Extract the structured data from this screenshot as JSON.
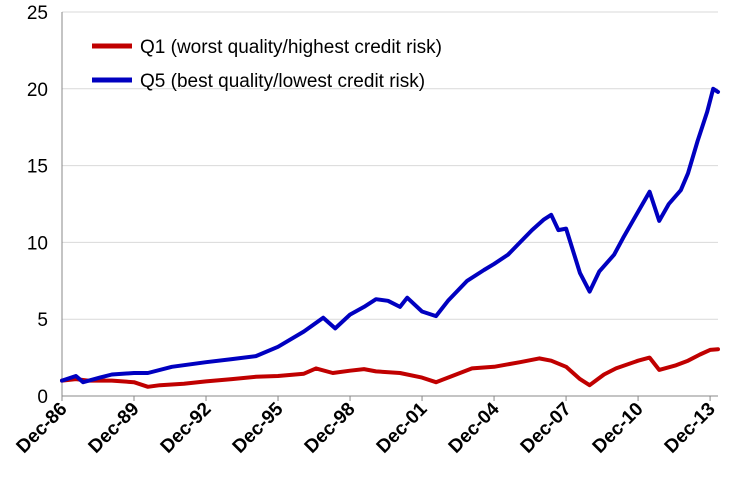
{
  "chart_data": {
    "type": "line",
    "title": "",
    "xlabel": "",
    "ylabel": "",
    "ylim": [
      0,
      25
    ],
    "yticks": [
      "0",
      "5",
      "10",
      "15",
      "20",
      "25"
    ],
    "xticks": [
      "Dec-86",
      "Dec-89",
      "Dec-92",
      "Dec-95",
      "Dec-98",
      "Dec-01",
      "Dec-04",
      "Dec-07",
      "Dec-10",
      "Dec-13"
    ],
    "x_range": [
      1986.92,
      2014.25
    ],
    "grid": "horizontal",
    "legend_position": "top-left",
    "series": [
      {
        "name": "Q1 (worst quality/highest credit risk)",
        "color": "#c00000",
        "points": [
          [
            1986.92,
            1.0
          ],
          [
            1987.5,
            1.1
          ],
          [
            1988.0,
            1.0
          ],
          [
            1989.0,
            1.0
          ],
          [
            1989.92,
            0.9
          ],
          [
            1990.5,
            0.6
          ],
          [
            1991.0,
            0.7
          ],
          [
            1992.0,
            0.8
          ],
          [
            1992.92,
            0.95
          ],
          [
            1994.0,
            1.1
          ],
          [
            1995.0,
            1.25
          ],
          [
            1995.92,
            1.3
          ],
          [
            1997.0,
            1.45
          ],
          [
            1997.5,
            1.8
          ],
          [
            1998.2,
            1.5
          ],
          [
            1998.92,
            1.65
          ],
          [
            1999.5,
            1.75
          ],
          [
            2000.0,
            1.6
          ],
          [
            2001.0,
            1.5
          ],
          [
            2001.92,
            1.2
          ],
          [
            2002.5,
            0.9
          ],
          [
            2003.0,
            1.2
          ],
          [
            2003.5,
            1.5
          ],
          [
            2004.0,
            1.8
          ],
          [
            2004.92,
            1.9
          ],
          [
            2006.0,
            2.2
          ],
          [
            2006.8,
            2.45
          ],
          [
            2007.3,
            2.3
          ],
          [
            2007.92,
            1.9
          ],
          [
            2008.5,
            1.1
          ],
          [
            2008.9,
            0.7
          ],
          [
            2009.5,
            1.4
          ],
          [
            2010.0,
            1.8
          ],
          [
            2010.92,
            2.3
          ],
          [
            2011.4,
            2.5
          ],
          [
            2011.8,
            1.7
          ],
          [
            2012.5,
            2.0
          ],
          [
            2013.0,
            2.3
          ],
          [
            2013.5,
            2.7
          ],
          [
            2013.92,
            3.0
          ],
          [
            2014.25,
            3.05
          ]
        ]
      },
      {
        "name": "Q5 (best quality/lowest credit risk)",
        "color": "#0000c0",
        "points": [
          [
            1986.92,
            1.0
          ],
          [
            1987.5,
            1.3
          ],
          [
            1987.8,
            0.9
          ],
          [
            1988.5,
            1.2
          ],
          [
            1989.0,
            1.4
          ],
          [
            1989.92,
            1.5
          ],
          [
            1990.5,
            1.5
          ],
          [
            1991.5,
            1.9
          ],
          [
            1992.92,
            2.2
          ],
          [
            1994.0,
            2.4
          ],
          [
            1995.0,
            2.6
          ],
          [
            1995.92,
            3.2
          ],
          [
            1997.0,
            4.2
          ],
          [
            1997.8,
            5.1
          ],
          [
            1998.3,
            4.4
          ],
          [
            1998.92,
            5.3
          ],
          [
            1999.5,
            5.8
          ],
          [
            2000.0,
            6.3
          ],
          [
            2000.5,
            6.2
          ],
          [
            2001.0,
            5.8
          ],
          [
            2001.3,
            6.4
          ],
          [
            2001.92,
            5.5
          ],
          [
            2002.5,
            5.2
          ],
          [
            2003.0,
            6.2
          ],
          [
            2003.8,
            7.5
          ],
          [
            2004.5,
            8.2
          ],
          [
            2004.92,
            8.6
          ],
          [
            2005.5,
            9.2
          ],
          [
            2006.0,
            10.0
          ],
          [
            2006.5,
            10.8
          ],
          [
            2007.0,
            11.5
          ],
          [
            2007.3,
            11.8
          ],
          [
            2007.6,
            10.8
          ],
          [
            2007.92,
            10.9
          ],
          [
            2008.5,
            8.0
          ],
          [
            2008.9,
            6.8
          ],
          [
            2009.3,
            8.1
          ],
          [
            2009.92,
            9.2
          ],
          [
            2010.3,
            10.3
          ],
          [
            2010.92,
            12.0
          ],
          [
            2011.4,
            13.3
          ],
          [
            2011.8,
            11.4
          ],
          [
            2012.2,
            12.5
          ],
          [
            2012.7,
            13.4
          ],
          [
            2013.0,
            14.5
          ],
          [
            2013.4,
            16.6
          ],
          [
            2013.8,
            18.5
          ],
          [
            2014.05,
            20.0
          ],
          [
            2014.25,
            19.8
          ]
        ]
      }
    ]
  }
}
